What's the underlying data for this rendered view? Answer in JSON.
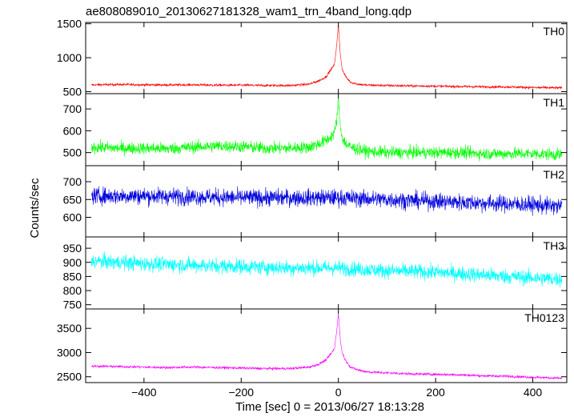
{
  "chart_data": {
    "type": "line",
    "title": "ae808089010_20130627181328_wam1_trn_4band_long.qdp",
    "xlabel": "Time [sec] 0 = 2013/06/27 18:13:28",
    "ylabel": "Counts/sec",
    "xlim": [
      -520,
      470
    ],
    "x_ticks": [
      -400,
      -200,
      0,
      200,
      400
    ],
    "x_tick_labels": [
      "−400",
      "−200",
      "0",
      "200",
      "400"
    ],
    "grid": false,
    "panels": [
      {
        "name": "TH0",
        "color": "#ff0000",
        "ylim": [
          470,
          1520
        ],
        "y_ticks": [
          500,
          1000,
          1500
        ],
        "y_tick_labels": [
          "500",
          "1000",
          "1500"
        ],
        "series": {
          "x": [
            -508,
            -450,
            -400,
            -350,
            -300,
            -250,
            -200,
            -150,
            -100,
            -60,
            -40,
            -25,
            -15,
            -8,
            -4,
            0,
            4,
            8,
            15,
            25,
            40,
            60,
            100,
            150,
            200,
            250,
            300,
            350,
            400,
            460
          ],
          "y": [
            600,
            605,
            600,
            598,
            600,
            595,
            595,
            590,
            590,
            610,
            660,
            720,
            830,
            900,
            1150,
            1480,
            1050,
            820,
            720,
            640,
            610,
            595,
            590,
            585,
            580,
            575,
            570,
            570,
            560,
            555
          ]
        }
      },
      {
        "name": "TH1",
        "color": "#00ff00",
        "ylim": [
          440,
          770
        ],
        "y_ticks": [
          500,
          600,
          700
        ],
        "y_tick_labels": [
          "500",
          "600",
          "700"
        ],
        "series": {
          "x": [
            -508,
            -450,
            -400,
            -350,
            -300,
            -250,
            -200,
            -150,
            -100,
            -60,
            -40,
            -25,
            -15,
            -8,
            -4,
            0,
            4,
            8,
            15,
            25,
            40,
            60,
            100,
            150,
            200,
            250,
            300,
            350,
            400,
            460
          ],
          "y": [
            525,
            520,
            520,
            518,
            525,
            530,
            528,
            520,
            520,
            525,
            540,
            555,
            575,
            590,
            640,
            740,
            620,
            570,
            540,
            525,
            515,
            505,
            500,
            500,
            500,
            500,
            495,
            495,
            495,
            490
          ]
        }
      },
      {
        "name": "TH2",
        "color": "#0000dd",
        "ylim": [
          545,
          745
        ],
        "y_ticks": [
          600,
          650,
          700
        ],
        "y_tick_labels": [
          "600",
          "650",
          "700"
        ],
        "series": {
          "x": [
            -508,
            -400,
            -300,
            -200,
            -100,
            0,
            100,
            200,
            300,
            400,
            460
          ],
          "y": [
            660,
            660,
            658,
            655,
            655,
            655,
            650,
            645,
            640,
            635,
            630
          ]
        }
      },
      {
        "name": "TH3",
        "color": "#00ffff",
        "ylim": [
          735,
          990
        ],
        "y_ticks": [
          750,
          800,
          850,
          900,
          950
        ],
        "y_tick_labels": [
          "750",
          "800",
          "850",
          "900",
          "950"
        ],
        "series": {
          "x": [
            -508,
            -400,
            -300,
            -200,
            -100,
            0,
            100,
            200,
            300,
            400,
            460
          ],
          "y": [
            905,
            895,
            890,
            885,
            880,
            880,
            870,
            865,
            855,
            845,
            840
          ]
        }
      },
      {
        "name": "TH0123",
        "color": "#ff00ff",
        "ylim": [
          2380,
          3900
        ],
        "y_ticks": [
          2500,
          3000,
          3500
        ],
        "y_tick_labels": [
          "2500",
          "3000",
          "3500"
        ],
        "series": {
          "x": [
            -508,
            -450,
            -400,
            -350,
            -300,
            -250,
            -200,
            -150,
            -100,
            -60,
            -40,
            -25,
            -15,
            -8,
            -4,
            0,
            4,
            8,
            15,
            25,
            40,
            60,
            100,
            150,
            200,
            250,
            300,
            350,
            400,
            460
          ],
          "y": [
            2720,
            2710,
            2700,
            2690,
            2700,
            2690,
            2680,
            2670,
            2670,
            2700,
            2760,
            2850,
            2980,
            3080,
            3400,
            3820,
            3250,
            3000,
            2830,
            2700,
            2640,
            2600,
            2580,
            2560,
            2550,
            2540,
            2520,
            2510,
            2490,
            2470
          ]
        }
      }
    ]
  }
}
